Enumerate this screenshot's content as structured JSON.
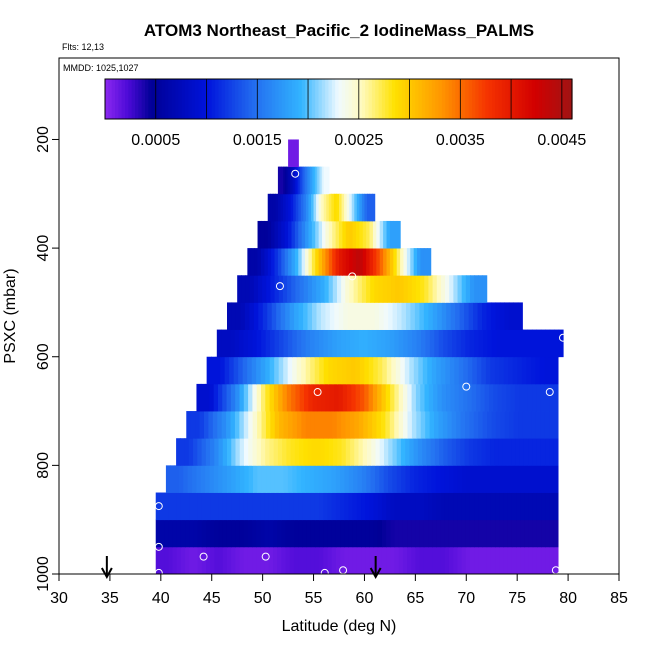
{
  "chart_data": {
    "type": "heatmap",
    "title": "ATOM3 Northeast_Pacific_2 IodineMass_PALMS",
    "flights_note": "Flts: 12,13",
    "dates_note": "MMDD: 1025,1027",
    "xlabel": "Latitude (deg N)",
    "ylabel": "PSXC (mbar)",
    "xlim": [
      30,
      85
    ],
    "ylim": [
      1000,
      50
    ],
    "y_reversed": true,
    "x_ticks": [
      "30",
      "35",
      "40",
      "45",
      "50",
      "55",
      "60",
      "65",
      "70",
      "75",
      "80",
      "85"
    ],
    "y_ticks": [
      "200",
      "400",
      "600",
      "800",
      "1000"
    ],
    "colorbar": {
      "range": [
        0,
        0.0046
      ],
      "ticks": [
        "0.0005",
        "0.0015",
        "0.0025",
        "0.0035",
        "0.0045"
      ]
    },
    "rows": [
      {
        "p": 975,
        "lat_start": 39.5,
        "lat_end": 79,
        "values": [
          0.0002,
          0.0001,
          0.0002,
          0.0001,
          0.0001,
          0.0002,
          0.0002,
          0.0001,
          0.0001,
          0.0001,
          0.0002,
          0.0002,
          0.0001,
          0.0001,
          0.0001,
          0.0001
        ]
      },
      {
        "p": 925,
        "lat_start": 39.5,
        "lat_end": 79,
        "values": [
          0.0006,
          0.0006,
          0.0005,
          0.0005,
          0.0006,
          0.0005,
          0.0005,
          0.0005,
          0.0005,
          0.0004,
          0.0004,
          0.0004,
          0.0004,
          0.0004,
          0.0004,
          0.0004
        ]
      },
      {
        "p": 875,
        "lat_start": 39.5,
        "lat_end": 79,
        "values": [
          0.0012,
          0.0012,
          0.0012,
          0.0012,
          0.0012,
          0.0012,
          0.0012,
          0.0011,
          0.001,
          0.0008,
          0.0008,
          0.0007,
          0.0007,
          0.0007,
          0.0007,
          0.0007
        ]
      },
      {
        "p": 825,
        "lat_start": 40.5,
        "lat_end": 79,
        "values": [
          0.0014,
          0.0016,
          0.0018,
          0.002,
          0.002,
          0.0019,
          0.0018,
          0.0016,
          0.0013,
          0.0011,
          0.001,
          0.0009,
          0.0009,
          0.0009,
          0.0009
        ]
      },
      {
        "p": 775,
        "lat_start": 41.5,
        "lat_end": 79,
        "values": [
          0.0012,
          0.0016,
          0.0022,
          0.0026,
          0.0028,
          0.0029,
          0.0028,
          0.0025,
          0.0021,
          0.0017,
          0.0014,
          0.0012,
          0.0011,
          0.0011,
          0.0011
        ]
      },
      {
        "p": 725,
        "lat_start": 42.5,
        "lat_end": 79,
        "values": [
          0.0012,
          0.0017,
          0.0024,
          0.0031,
          0.0034,
          0.0034,
          0.0032,
          0.0028,
          0.0022,
          0.0018,
          0.0015,
          0.0013,
          0.0012,
          0.0012
        ]
      },
      {
        "p": 675,
        "lat_start": 43.5,
        "lat_end": 79,
        "values": [
          0.0009,
          0.0016,
          0.0026,
          0.0034,
          0.0039,
          0.004,
          0.0036,
          0.0028,
          0.0021,
          0.0017,
          0.0015,
          0.0013,
          0.0012,
          0.0012
        ]
      },
      {
        "p": 625,
        "lat_start": 44.5,
        "lat_end": 79,
        "values": [
          0.001,
          0.0015,
          0.002,
          0.0025,
          0.0029,
          0.003,
          0.0027,
          0.0022,
          0.0018,
          0.0015,
          0.0012,
          0.0011,
          0.001
        ]
      },
      {
        "p": 575,
        "lat_start": 45.5,
        "lat_end": 79.5,
        "values": [
          0.0008,
          0.001,
          0.0013,
          0.0016,
          0.0018,
          0.0019,
          0.0018,
          0.0016,
          0.0013,
          0.0011,
          0.001,
          0.001,
          0.001
        ]
      },
      {
        "p": 525,
        "lat_start": 46.5,
        "lat_end": 75.5,
        "values": [
          0.0007,
          0.0012,
          0.0018,
          0.0022,
          0.0024,
          0.0024,
          0.0022,
          0.0019,
          0.0015,
          0.0011,
          0.0009
        ]
      },
      {
        "p": 475,
        "lat_start": 47.5,
        "lat_end": 72,
        "values": [
          0.0007,
          0.0011,
          0.0015,
          0.0019,
          0.0025,
          0.0029,
          0.003,
          0.0028,
          0.0023,
          0.0017
        ]
      },
      {
        "p": 425,
        "lat_start": 48.5,
        "lat_end": 66.5,
        "values": [
          0.0006,
          0.0012,
          0.002,
          0.003,
          0.004,
          0.0044,
          0.0036,
          0.0026,
          0.0017
        ]
      },
      {
        "p": 375,
        "lat_start": 49.5,
        "lat_end": 63.5,
        "values": [
          0.0005,
          0.001,
          0.0018,
          0.0025,
          0.003,
          0.0027,
          0.0018
        ]
      },
      {
        "p": 325,
        "lat_start": 50.5,
        "lat_end": 61,
        "values": [
          0.0006,
          0.001,
          0.0016,
          0.0025,
          0.0029,
          0.0022,
          0.0014
        ]
      },
      {
        "p": 275,
        "lat_start": 51.5,
        "lat_end": 56.5,
        "values": [
          0.0004,
          0.0008,
          0.0014,
          0.0019,
          0.0023
        ]
      },
      {
        "p": 225,
        "lat_start": 52.5,
        "lat_end": 53.5,
        "values": [
          0.0001
        ]
      }
    ],
    "tall_strip": {
      "lat": 53.3,
      "p_top": 210,
      "p_bottom": 250,
      "value": 0.0001
    },
    "samples": [
      {
        "lat": 53.2,
        "p": 263
      },
      {
        "lat": 51.7,
        "p": 470
      },
      {
        "lat": 58.8,
        "p": 452
      },
      {
        "lat": 55.4,
        "p": 665
      },
      {
        "lat": 70,
        "p": 655
      },
      {
        "lat": 78.2,
        "p": 665
      },
      {
        "lat": 79.5,
        "p": 565
      },
      {
        "lat": 39.8,
        "p": 875
      },
      {
        "lat": 39.8,
        "p": 950
      },
      {
        "lat": 44.2,
        "p": 968
      },
      {
        "lat": 50.3,
        "p": 968
      },
      {
        "lat": 39.8,
        "p": 998
      },
      {
        "lat": 56.1,
        "p": 998
      },
      {
        "lat": 57.9,
        "p": 993
      },
      {
        "lat": 78.8,
        "p": 993
      }
    ],
    "arrows_lat": [
      34.7,
      61.1
    ]
  }
}
